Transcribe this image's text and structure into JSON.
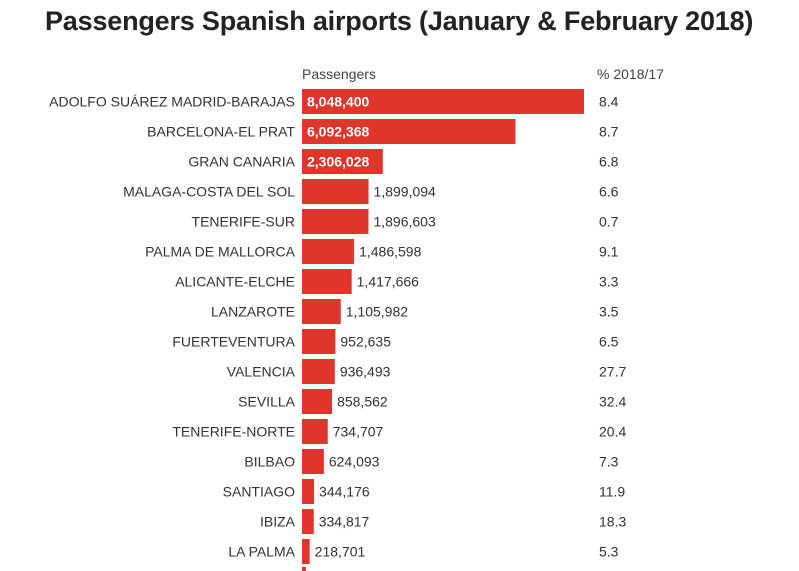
{
  "title": "Passengers Spanish airports (January & February 2018)",
  "headers": {
    "passengers": "Passengers",
    "pct": "% 2018/17"
  },
  "colors": {
    "bar": "#e0352b"
  },
  "chart_data": {
    "type": "bar",
    "orientation": "horizontal",
    "title": "Passengers Spanish airports (January & February 2018)",
    "xlabel": "Passengers",
    "ylabel": "",
    "xlim": [
      0,
      8048400
    ],
    "categories": [
      "ADOLFO SUÁREZ MADRID-BARAJAS",
      "BARCELONA-EL PRAT",
      "GRAN CANARIA",
      "MALAGA-COSTA DEL SOL",
      "TENERIFE-SUR",
      "PALMA DE MALLORCA",
      "ALICANTE-ELCHE",
      "LANZAROTE",
      "FUERTEVENTURA",
      "VALENCIA",
      "SEVILLA",
      "TENERIFE-NORTE",
      "BILBAO",
      "SANTIAGO",
      "IBIZA",
      "LA PALMA"
    ],
    "values": [
      8048400,
      6092368,
      2306028,
      1899094,
      1896603,
      1486598,
      1417666,
      1105982,
      952635,
      936493,
      858562,
      734707,
      624093,
      344176,
      334817,
      218701
    ],
    "value_labels": [
      "8,048,400",
      "6,092,368",
      "2,306,028",
      "1,899,094",
      "1,896,603",
      "1,486,598",
      "1,417,666",
      "1,105,982",
      "952,635",
      "936,493",
      "858,562",
      "734,707",
      "624,093",
      "344,176",
      "334,817",
      "218,701"
    ],
    "pct_change": [
      "8.4",
      "8.7",
      "6.8",
      "6.6",
      "0.7",
      "9.1",
      "3.3",
      "3.5",
      "6.5",
      "27.7",
      "32.4",
      "20.4",
      "7.3",
      "11.9",
      "18.3",
      "5.3"
    ]
  }
}
